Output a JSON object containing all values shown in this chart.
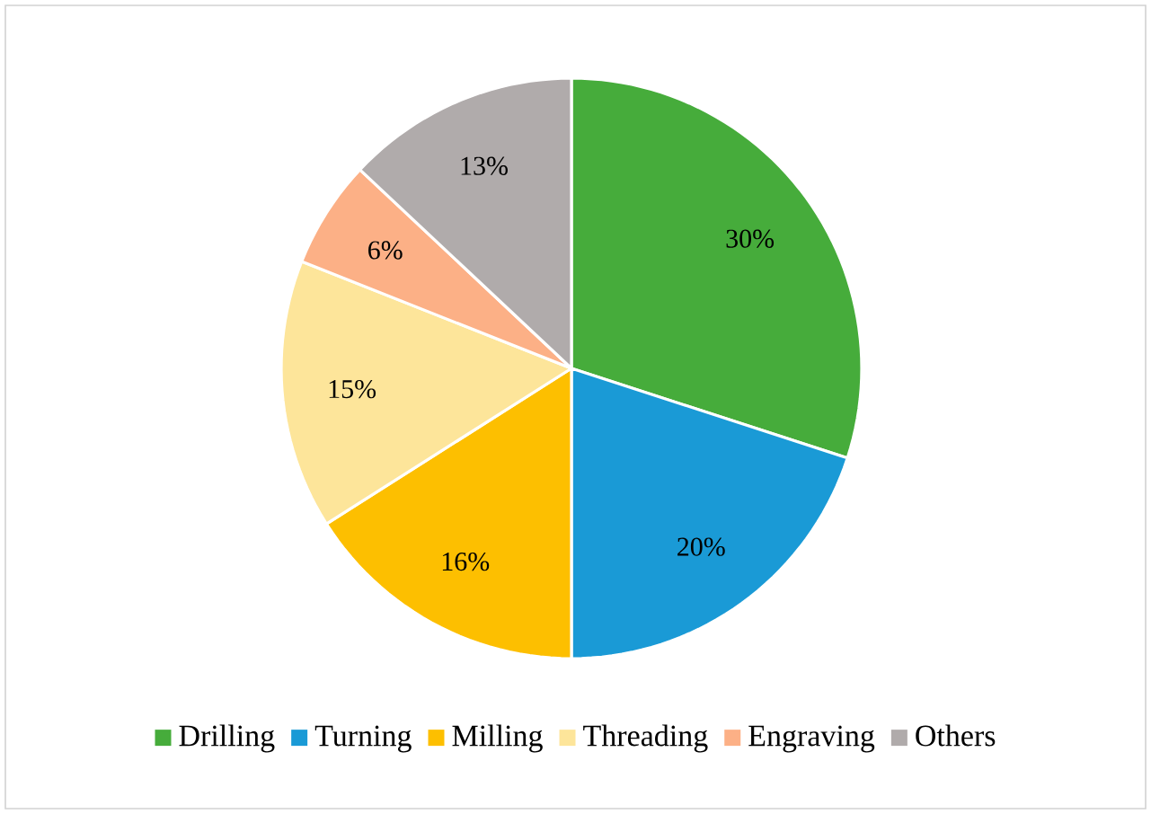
{
  "chart_data": {
    "type": "pie",
    "categories": [
      "Drilling",
      "Turning",
      "Milling",
      "Threading",
      "Engraving",
      "Others"
    ],
    "values": [
      30,
      20,
      16,
      15,
      6,
      13
    ],
    "colors": [
      "#46ac3b",
      "#1a9ad6",
      "#fdbf00",
      "#fde59a",
      "#fcb086",
      "#b0abab"
    ],
    "value_labels": [
      "30%",
      "20%",
      "16%",
      "15%",
      "6%",
      "13%"
    ],
    "legend": "bottom"
  }
}
